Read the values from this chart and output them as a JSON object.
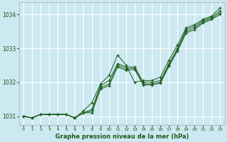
{
  "title": "Graphe pression niveau de la mer (hPa)",
  "bg_color": "#cce8f0",
  "grid_color": "#ffffff",
  "line_color": "#1a5c1a",
  "ylim": [
    1030.75,
    1034.35
  ],
  "xlim": [
    -0.5,
    23.5
  ],
  "yticks": [
    1031,
    1032,
    1033,
    1034
  ],
  "xticks": [
    0,
    1,
    2,
    3,
    4,
    5,
    6,
    7,
    8,
    9,
    10,
    11,
    12,
    13,
    14,
    15,
    16,
    17,
    18,
    19,
    20,
    21,
    22,
    23
  ],
  "series": [
    [
      1031.0,
      1030.95,
      1031.05,
      1031.05,
      1031.05,
      1031.05,
      1030.95,
      1031.15,
      1031.4,
      1031.95,
      1032.2,
      1032.8,
      1032.5,
      1032.0,
      1032.05,
      1032.05,
      1032.15,
      1032.65,
      1033.1,
      1033.6,
      1033.7,
      1033.85,
      1033.95,
      1034.2
    ],
    [
      1031.0,
      1030.95,
      1031.05,
      1031.05,
      1031.05,
      1031.05,
      1030.95,
      1031.1,
      1031.2,
      1031.9,
      1032.05,
      1032.55,
      1032.45,
      1032.45,
      1032.0,
      1032.0,
      1032.05,
      1032.55,
      1033.0,
      1033.55,
      1033.65,
      1033.82,
      1033.92,
      1034.1
    ],
    [
      1031.0,
      1030.95,
      1031.05,
      1031.05,
      1031.05,
      1031.05,
      1030.95,
      1031.1,
      1031.15,
      1031.85,
      1031.95,
      1032.5,
      1032.4,
      1032.42,
      1031.95,
      1031.95,
      1032.0,
      1032.5,
      1032.95,
      1033.5,
      1033.6,
      1033.78,
      1033.88,
      1034.05
    ],
    [
      1031.0,
      1030.95,
      1031.05,
      1031.05,
      1031.05,
      1031.05,
      1030.95,
      1031.1,
      1031.1,
      1031.8,
      1031.9,
      1032.45,
      1032.35,
      1032.38,
      1031.92,
      1031.92,
      1031.97,
      1032.47,
      1032.92,
      1033.45,
      1033.55,
      1033.75,
      1033.85,
      1034.0
    ]
  ]
}
